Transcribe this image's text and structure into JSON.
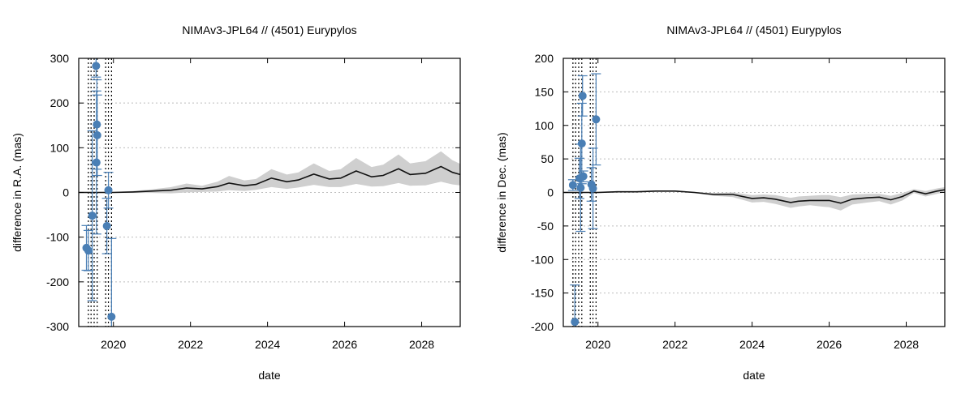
{
  "colors": {
    "points": "#4a7fb5",
    "band": "#cfcfcf",
    "model": "#111111",
    "grid": "#bdbdbd"
  },
  "chart_data": [
    {
      "type": "line",
      "title": "NIMAv3-JPL64 // (4501) Eurypylos",
      "xlabel": "date",
      "ylabel": "difference in R.A. (mas)",
      "xlim": [
        2019.1,
        2029.0
      ],
      "ylim": [
        -300,
        300
      ],
      "xticks": [
        2020,
        2022,
        2024,
        2026,
        2028
      ],
      "xtick_labels": [
        "2020",
        "2022",
        "2024",
        "2026",
        "2028"
      ],
      "yticks": [
        -300,
        -200,
        -100,
        0,
        100,
        200,
        300
      ],
      "ytick_labels": [
        "-300",
        "-200",
        "-100",
        "0",
        "100",
        "200",
        "300"
      ],
      "grid": "horizontal dotted",
      "observation_epochs": [
        2019.35,
        2019.42,
        2019.5,
        2019.58,
        2019.8,
        2019.87,
        2019.95
      ],
      "model_difference": {
        "x": [
          2019.1,
          2020.0,
          2020.5,
          2021.0,
          2021.5,
          2021.9,
          2022.3,
          2022.7,
          2023.0,
          2023.4,
          2023.7,
          2024.1,
          2024.5,
          2024.8,
          2025.2,
          2025.6,
          2025.9,
          2026.3,
          2026.7,
          2027.0,
          2027.4,
          2027.7,
          2028.1,
          2028.5,
          2028.8,
          2029.0
        ],
        "y": [
          0,
          0,
          1,
          3,
          5,
          10,
          8,
          13,
          21,
          15,
          18,
          32,
          24,
          28,
          41,
          30,
          32,
          48,
          35,
          38,
          53,
          40,
          43,
          58,
          45,
          40
        ]
      },
      "uncertainty_band": {
        "x": [
          2019.1,
          2020.0,
          2020.5,
          2021.0,
          2021.5,
          2021.9,
          2022.3,
          2022.7,
          2023.0,
          2023.4,
          2023.7,
          2024.1,
          2024.5,
          2024.8,
          2025.2,
          2025.6,
          2025.9,
          2026.3,
          2026.7,
          2027.0,
          2027.4,
          2027.7,
          2028.1,
          2028.5,
          2028.8,
          2029.0
        ],
        "upper": [
          1,
          1,
          3,
          7,
          12,
          20,
          15,
          24,
          37,
          27,
          30,
          52,
          40,
          45,
          65,
          48,
          52,
          77,
          57,
          62,
          85,
          65,
          70,
          92,
          72,
          64
        ],
        "lower": [
          -1,
          -1,
          -1,
          -1,
          -2,
          0,
          1,
          2,
          5,
          3,
          6,
          12,
          8,
          11,
          17,
          12,
          12,
          19,
          13,
          14,
          21,
          15,
          16,
          24,
          18,
          16
        ]
      },
      "observations": [
        {
          "x": 2019.3,
          "y": -124,
          "err": 50
        },
        {
          "x": 2019.35,
          "y": -130,
          "err": 45
        },
        {
          "x": 2019.45,
          "y": -52,
          "err": 190
        },
        {
          "x": 2019.55,
          "y": 283,
          "err": 25
        },
        {
          "x": 2019.57,
          "y": 152,
          "err": 100
        },
        {
          "x": 2019.58,
          "y": 128,
          "err": 90
        },
        {
          "x": 2019.56,
          "y": 67,
          "err": 160
        },
        {
          "x": 2019.83,
          "y": -75,
          "err": 62
        },
        {
          "x": 2019.87,
          "y": 5,
          "err": 40
        },
        {
          "x": 2019.95,
          "y": -278,
          "err": 175
        }
      ]
    },
    {
      "type": "line",
      "title": "NIMAv3-JPL64 // (4501) Eurypylos",
      "xlabel": "date",
      "ylabel": "difference in Dec. (mas)",
      "xlim": [
        2019.1,
        2029.0
      ],
      "ylim": [
        -200,
        200
      ],
      "xticks": [
        2020,
        2022,
        2024,
        2026,
        2028
      ],
      "xtick_labels": [
        "2020",
        "2022",
        "2024",
        "2026",
        "2028"
      ],
      "yticks": [
        -200,
        -150,
        -100,
        -50,
        0,
        50,
        100,
        150,
        200
      ],
      "ytick_labels": [
        "-200",
        "-150",
        "-100",
        "-50",
        "0",
        "50",
        "100",
        "150",
        "200"
      ],
      "grid": "horizontal dotted",
      "observation_epochs": [
        2019.35,
        2019.42,
        2019.5,
        2019.58,
        2019.8,
        2019.87,
        2019.95
      ],
      "model_difference": {
        "x": [
          2019.1,
          2020.0,
          2020.5,
          2021.0,
          2021.5,
          2022.0,
          2022.5,
          2023.0,
          2023.5,
          2024.0,
          2024.3,
          2024.6,
          2025.0,
          2025.2,
          2025.5,
          2025.8,
          2026.0,
          2026.3,
          2026.6,
          2027.0,
          2027.3,
          2027.6,
          2027.9,
          2028.2,
          2028.5,
          2028.8,
          2029.0
        ],
        "y": [
          0,
          0,
          1,
          1,
          2,
          2,
          0,
          -3,
          -3,
          -9,
          -8,
          -10,
          -15,
          -13,
          -12,
          -12,
          -12,
          -16,
          -10,
          -8,
          -7,
          -11,
          -6,
          2,
          -2,
          2,
          4
        ]
      },
      "uncertainty_band": {
        "x": [
          2019.1,
          2020.0,
          2020.5,
          2021.0,
          2021.5,
          2022.0,
          2022.5,
          2023.0,
          2023.5,
          2024.0,
          2024.3,
          2024.6,
          2025.0,
          2025.2,
          2025.5,
          2025.8,
          2026.0,
          2026.3,
          2026.6,
          2027.0,
          2027.3,
          2027.6,
          2027.9,
          2028.2,
          2028.5,
          2028.8,
          2029.0
        ],
        "upper": [
          1,
          1,
          2,
          2,
          3,
          3,
          1,
          -1,
          0,
          -4,
          -3,
          -4,
          -8,
          -6,
          -5,
          -4,
          -4,
          -7,
          -3,
          -2,
          -2,
          -5,
          -1,
          5,
          2,
          6,
          8
        ],
        "lower": [
          -1,
          -1,
          0,
          0,
          1,
          1,
          -1,
          -5,
          -7,
          -15,
          -14,
          -17,
          -23,
          -21,
          -19,
          -21,
          -22,
          -27,
          -18,
          -15,
          -13,
          -18,
          -12,
          -1,
          -6,
          -2,
          0
        ]
      },
      "observations": [
        {
          "x": 2019.35,
          "y": 11,
          "err": 8
        },
        {
          "x": 2019.4,
          "y": -193,
          "err": 55
        },
        {
          "x": 2019.52,
          "y": 21,
          "err": 30
        },
        {
          "x": 2019.55,
          "y": 7,
          "err": 65
        },
        {
          "x": 2019.58,
          "y": 73,
          "err": 60
        },
        {
          "x": 2019.6,
          "y": 144,
          "err": 30
        },
        {
          "x": 2019.62,
          "y": 24,
          "err": 8
        },
        {
          "x": 2019.83,
          "y": 12,
          "err": 25
        },
        {
          "x": 2019.87,
          "y": 6,
          "err": 60
        },
        {
          "x": 2019.95,
          "y": 109,
          "err": 68
        }
      ]
    }
  ]
}
